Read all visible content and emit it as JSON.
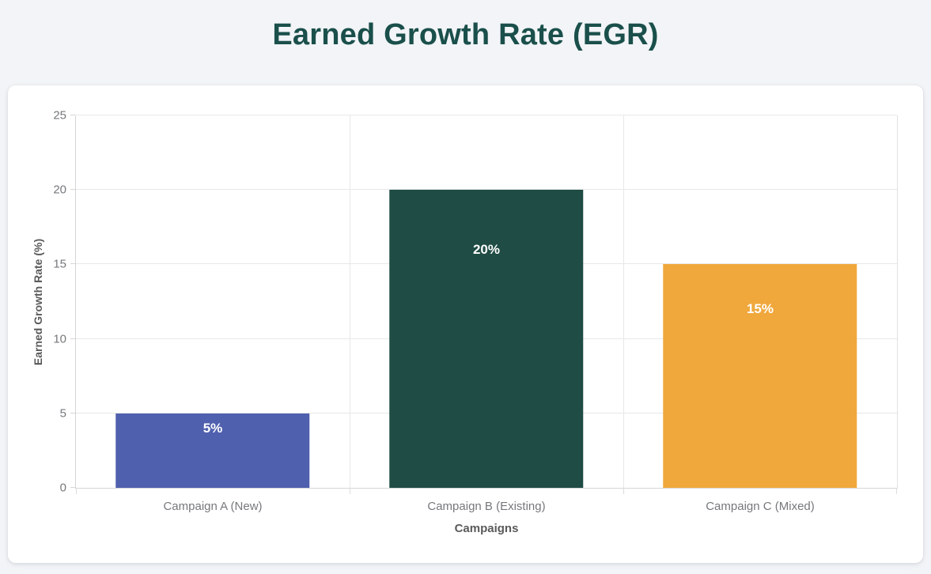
{
  "page": {
    "background_color": "#F2F4F7",
    "card_color": "#FFFFFF"
  },
  "header": {
    "title": "Earned Growth Rate (EGR)",
    "title_color": "#1A4F4B"
  },
  "chart_data": {
    "type": "bar",
    "title": "Earned Growth Rate (EGR)",
    "categories": [
      "Campaign A (New)",
      "Campaign B (Existing)",
      "Campaign C (Mixed)"
    ],
    "values": [
      5,
      20,
      15
    ],
    "data_labels": [
      "5%",
      "20%",
      "15%"
    ],
    "bar_colors": [
      "#4F60AE",
      "#1F4C44",
      "#F0A83C"
    ],
    "data_label_color": "#FFFFFF",
    "xlabel": "Campaigns",
    "ylabel": "Earned Growth Rate (%)",
    "ylim": [
      0,
      25
    ],
    "yticks": [
      0,
      5,
      10,
      15,
      20,
      25
    ],
    "grid": true,
    "legend": false,
    "gridline_color": "#E8E8E8",
    "axis_line_color": "#D6D6D6",
    "tick_label_color": "#75787B",
    "axis_title_color": "#5A5A5A"
  }
}
